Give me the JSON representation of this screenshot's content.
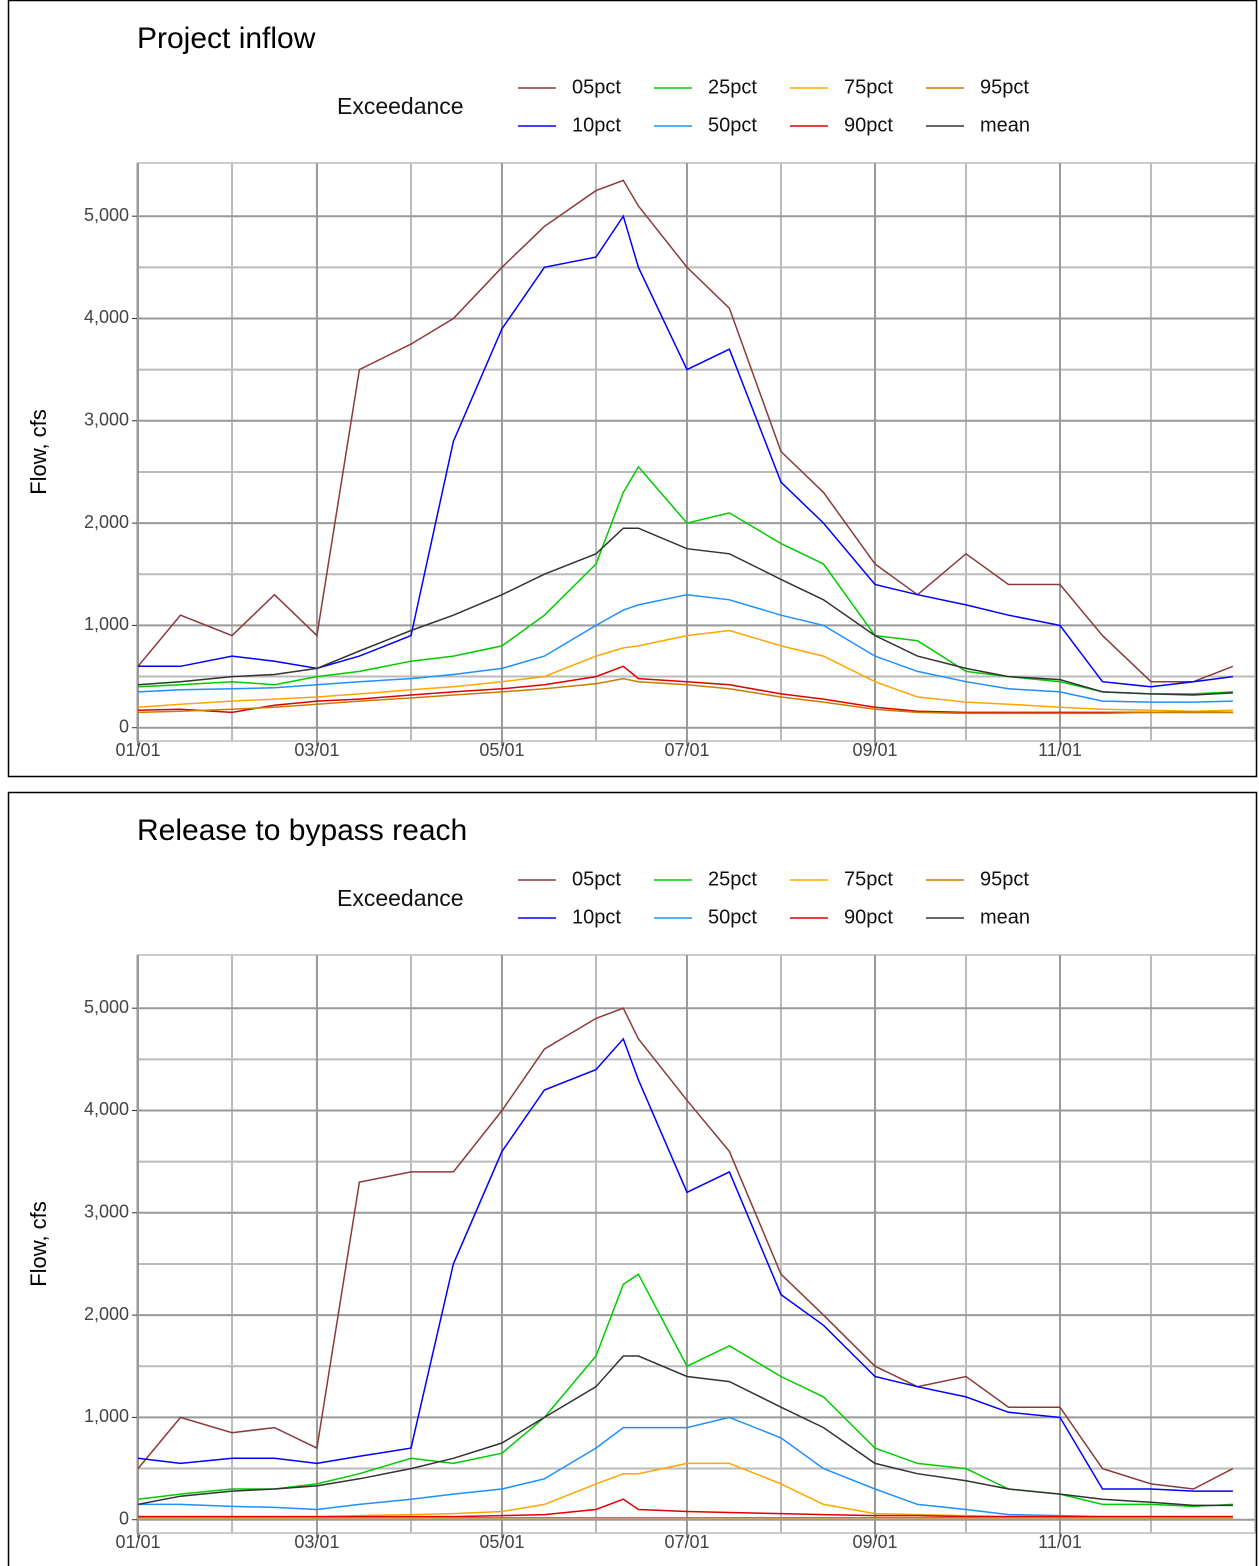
{
  "chart_data": [
    {
      "type": "line",
      "title": "Project inflow",
      "y_label": "Flow, cfs",
      "legend_title": "Exceedance",
      "x": [
        "01/01",
        "01/15",
        "02/01",
        "02/15",
        "03/01",
        "03/15",
        "04/01",
        "04/15",
        "05/01",
        "05/15",
        "06/01",
        "06/10",
        "06/15",
        "07/01",
        "07/15",
        "08/01",
        "08/15",
        "09/01",
        "09/15",
        "10/01",
        "10/15",
        "11/01",
        "11/15",
        "12/01",
        "12/15",
        "12/28"
      ],
      "xlim": [
        "01/01",
        "12/31"
      ],
      "xticks": [
        "01/01",
        "03/01",
        "05/01",
        "07/01",
        "09/01",
        "11/01"
      ],
      "x_minor_ticks": [
        "02/01",
        "04/01",
        "06/01",
        "08/01",
        "10/01",
        "12/01"
      ],
      "ylim": [
        -130,
        5520
      ],
      "yticks": [
        0,
        {
          "value": 1000,
          "label": "1,000"
        },
        {
          "value": 2000,
          "label": "2,000"
        },
        {
          "value": 3000,
          "label": "3,000"
        },
        {
          "value": 4000,
          "label": "4,000"
        },
        {
          "value": 5000,
          "label": "5,000"
        }
      ],
      "y_minor_ticks": [
        500,
        1500,
        2500,
        3500,
        4500
      ],
      "grid": true,
      "series": [
        {
          "name": "05pct",
          "color": "#8b3a3a",
          "values": [
            600,
            1100,
            900,
            1300,
            900,
            3500,
            3750,
            4000,
            4500,
            4900,
            5250,
            5350,
            5100,
            4500,
            4100,
            2700,
            2300,
            1600,
            1300,
            1700,
            1400,
            1400,
            900,
            450,
            450,
            600
          ]
        },
        {
          "name": "10pct",
          "color": "#0000ff",
          "values": [
            600,
            600,
            700,
            650,
            580,
            700,
            900,
            2800,
            3900,
            4500,
            4600,
            5000,
            4500,
            3500,
            3700,
            2400,
            2000,
            1400,
            1300,
            1200,
            1100,
            1000,
            450,
            400,
            450,
            500
          ]
        },
        {
          "name": "25pct",
          "color": "#00cc00",
          "values": [
            400,
            420,
            450,
            420,
            500,
            550,
            650,
            700,
            800,
            1100,
            1600,
            2300,
            2550,
            2000,
            2100,
            1800,
            1600,
            900,
            850,
            550,
            500,
            450,
            350,
            330,
            330,
            350
          ]
        },
        {
          "name": "50pct",
          "color": "#1e90ff",
          "values": [
            350,
            370,
            380,
            390,
            420,
            450,
            480,
            520,
            580,
            700,
            1000,
            1150,
            1200,
            1300,
            1250,
            1100,
            1000,
            700,
            550,
            450,
            380,
            350,
            260,
            250,
            250,
            260
          ]
        },
        {
          "name": "75pct",
          "color": "#ffa500",
          "values": [
            200,
            230,
            260,
            280,
            300,
            330,
            370,
            400,
            450,
            500,
            700,
            780,
            800,
            900,
            950,
            800,
            700,
            450,
            300,
            250,
            230,
            200,
            180,
            170,
            160,
            170
          ]
        },
        {
          "name": "90pct",
          "color": "#e00000",
          "values": [
            170,
            180,
            150,
            220,
            260,
            280,
            320,
            350,
            380,
            420,
            500,
            600,
            480,
            450,
            420,
            330,
            280,
            200,
            160,
            150,
            150,
            150,
            150,
            150,
            150,
            150
          ]
        },
        {
          "name": "95pct",
          "color": "#cc7a00",
          "values": [
            150,
            160,
            180,
            200,
            230,
            260,
            290,
            320,
            350,
            380,
            430,
            480,
            450,
            420,
            380,
            300,
            250,
            180,
            150,
            140,
            140,
            140,
            140,
            150,
            150,
            150
          ]
        },
        {
          "name": "mean",
          "color": "#333333",
          "values": [
            420,
            450,
            500,
            520,
            580,
            750,
            950,
            1100,
            1300,
            1500,
            1700,
            1950,
            1950,
            1750,
            1700,
            1450,
            1250,
            900,
            700,
            580,
            500,
            470,
            350,
            330,
            320,
            340
          ]
        }
      ]
    },
    {
      "type": "line",
      "title": "Release to bypass reach",
      "y_label": "Flow, cfs",
      "legend_title": "Exceedance",
      "x": [
        "01/01",
        "01/15",
        "02/01",
        "02/15",
        "03/01",
        "03/15",
        "04/01",
        "04/15",
        "05/01",
        "05/15",
        "06/01",
        "06/10",
        "06/15",
        "07/01",
        "07/15",
        "08/01",
        "08/15",
        "09/01",
        "09/15",
        "10/01",
        "10/15",
        "11/01",
        "11/15",
        "12/01",
        "12/15",
        "12/28"
      ],
      "xlim": [
        "01/01",
        "12/31"
      ],
      "xticks": [
        "01/01",
        "03/01",
        "05/01",
        "07/01",
        "09/01",
        "11/01"
      ],
      "x_minor_ticks": [
        "02/01",
        "04/01",
        "06/01",
        "08/01",
        "10/01",
        "12/01"
      ],
      "ylim": [
        -130,
        5520
      ],
      "yticks": [
        0,
        {
          "value": 1000,
          "label": "1,000"
        },
        {
          "value": 2000,
          "label": "2,000"
        },
        {
          "value": 3000,
          "label": "3,000"
        },
        {
          "value": 4000,
          "label": "4,000"
        },
        {
          "value": 5000,
          "label": "5,000"
        }
      ],
      "y_minor_ticks": [
        500,
        1500,
        2500,
        3500,
        4500
      ],
      "grid": true,
      "series": [
        {
          "name": "05pct",
          "color": "#8b3a3a",
          "values": [
            500,
            1000,
            850,
            900,
            700,
            3300,
            3400,
            3400,
            4000,
            4600,
            4900,
            5000,
            4700,
            4100,
            3600,
            2400,
            2000,
            1500,
            1300,
            1400,
            1100,
            1100,
            500,
            350,
            300,
            500
          ]
        },
        {
          "name": "10pct",
          "color": "#0000ff",
          "values": [
            600,
            550,
            600,
            600,
            550,
            620,
            700,
            2500,
            3600,
            4200,
            4400,
            4700,
            4300,
            3200,
            3400,
            2200,
            1900,
            1400,
            1300,
            1200,
            1050,
            1000,
            300,
            300,
            280,
            280
          ]
        },
        {
          "name": "25pct",
          "color": "#00cc00",
          "values": [
            200,
            250,
            300,
            300,
            350,
            450,
            600,
            550,
            650,
            1000,
            1600,
            2300,
            2400,
            1500,
            1700,
            1400,
            1200,
            700,
            550,
            500,
            300,
            250,
            150,
            150,
            130,
            150
          ]
        },
        {
          "name": "50pct",
          "color": "#1e90ff",
          "values": [
            150,
            150,
            130,
            120,
            100,
            150,
            200,
            250,
            300,
            400,
            700,
            900,
            900,
            900,
            1000,
            800,
            500,
            300,
            150,
            100,
            50,
            40,
            30,
            30,
            30,
            30
          ]
        },
        {
          "name": "75pct",
          "color": "#ffa500",
          "values": [
            30,
            30,
            30,
            30,
            30,
            40,
            50,
            60,
            80,
            150,
            350,
            450,
            450,
            550,
            550,
            350,
            150,
            60,
            50,
            40,
            30,
            30,
            30,
            30,
            30,
            30
          ]
        },
        {
          "name": "90pct",
          "color": "#e00000",
          "values": [
            30,
            30,
            30,
            30,
            30,
            30,
            30,
            30,
            40,
            50,
            100,
            200,
            100,
            80,
            70,
            60,
            50,
            40,
            40,
            30,
            30,
            30,
            30,
            30,
            30,
            30
          ]
        },
        {
          "name": "95pct",
          "color": "#cc7a00",
          "values": [
            20,
            20,
            20,
            20,
            20,
            20,
            20,
            20,
            20,
            20,
            20,
            20,
            20,
            20,
            20,
            20,
            20,
            20,
            20,
            20,
            20,
            20,
            20,
            20,
            20,
            20
          ]
        },
        {
          "name": "mean",
          "color": "#333333",
          "values": [
            150,
            230,
            280,
            300,
            330,
            400,
            500,
            600,
            750,
            1000,
            1300,
            1600,
            1600,
            1400,
            1350,
            1100,
            900,
            550,
            450,
            380,
            300,
            250,
            200,
            170,
            140,
            140
          ]
        }
      ]
    }
  ]
}
